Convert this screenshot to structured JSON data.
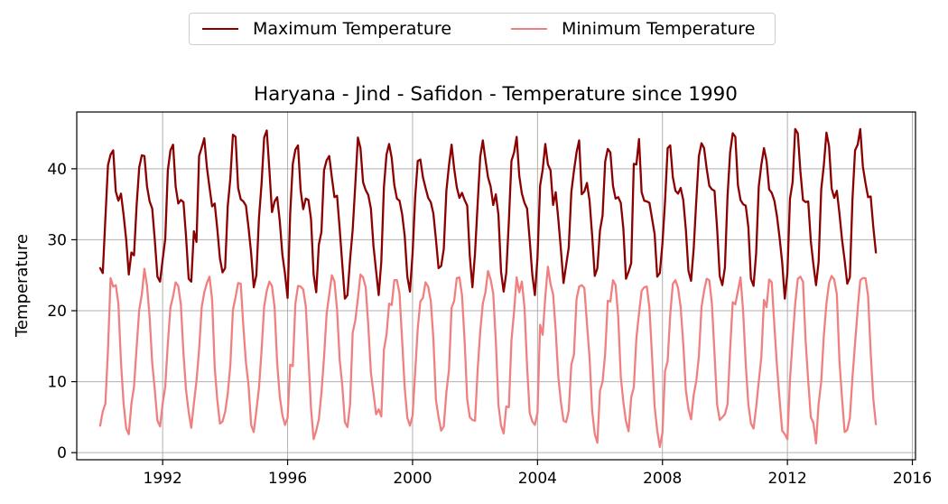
{
  "chart_data": {
    "type": "line",
    "title": "Haryana - Jind - Safidon - Temperature since 1990",
    "xlabel": "",
    "ylabel": "Temperature",
    "xlim": [
      1989.25,
      2016.1
    ],
    "ylim": [
      -1.0,
      48.0
    ],
    "xticks": [
      1992,
      1996,
      2000,
      2004,
      2008,
      2012,
      2016
    ],
    "yticks": [
      0,
      10,
      20,
      30,
      40
    ],
    "grid": true,
    "legend_position": "top-center",
    "x_start": 1990.0,
    "x_step": 0.08333,
    "series": [
      {
        "name": "Maximum Temperature",
        "color": "#8b0000",
        "values": [
          26.0,
          25.3,
          33.0,
          40.5,
          42.0,
          42.6,
          36.8,
          35.5,
          36.5,
          33.5,
          30.0,
          25.1,
          28.2,
          27.8,
          34.8,
          40.2,
          41.9,
          41.8,
          37.5,
          35.4,
          34.4,
          29.9,
          24.8,
          24.1,
          27.2,
          30.1,
          39.8,
          42.6,
          43.4,
          37.5,
          35.1,
          35.6,
          35.3,
          30.4,
          24.5,
          24.1,
          31.2,
          29.7,
          41.8,
          43.0,
          44.3,
          40.2,
          37.4,
          34.7,
          35.1,
          31.5,
          27.4,
          25.4,
          26.0,
          34.7,
          38.6,
          44.8,
          44.5,
          37.3,
          35.7,
          35.4,
          34.8,
          31.7,
          28.1,
          23.3,
          25.0,
          33.0,
          37.9,
          44.4,
          45.4,
          39.9,
          33.9,
          35.4,
          36.0,
          32.6,
          27.9,
          25.2,
          21.8,
          33.7,
          40.7,
          42.7,
          43.3,
          37.0,
          34.3,
          35.8,
          35.6,
          32.9,
          25.1,
          22.6,
          29.3,
          31.1,
          39.8,
          41.2,
          41.8,
          38.8,
          36.0,
          36.2,
          31.6,
          26.6,
          21.7,
          22.2,
          27.2,
          31.4,
          37.7,
          44.4,
          42.9,
          38.1,
          37.0,
          36.3,
          34.4,
          29.1,
          25.6,
          22.2,
          26.9,
          37.4,
          42.0,
          43.5,
          41.5,
          37.7,
          35.8,
          35.5,
          33.6,
          30.5,
          24.8,
          22.7,
          28.0,
          35.9,
          41.1,
          41.3,
          38.8,
          37.3,
          35.9,
          35.3,
          33.7,
          30.0,
          26.0,
          26.3,
          28.7,
          36.9,
          40.5,
          43.4,
          40.0,
          37.4,
          35.9,
          36.6,
          35.6,
          34.8,
          27.7,
          23.3,
          28.1,
          35.0,
          41.7,
          44.0,
          41.3,
          38.8,
          37.5,
          34.9,
          36.4,
          33.5,
          25.5,
          22.7,
          25.3,
          32.6,
          41.1,
          42.3,
          44.5,
          39.0,
          36.5,
          35.2,
          34.4,
          30.0,
          25.1,
          22.2,
          27.5,
          37.6,
          39.9,
          43.5,
          40.6,
          39.8,
          34.9,
          36.7,
          32.9,
          28.6,
          23.9,
          26.4,
          28.9,
          36.7,
          39.7,
          42.3,
          44.0,
          36.4,
          36.8,
          38.0,
          35.5,
          30.6,
          24.9,
          26.0,
          31.3,
          33.4,
          41.0,
          42.8,
          42.3,
          37.6,
          35.8,
          36.0,
          35.2,
          31.5,
          24.5,
          25.5,
          26.7,
          40.7,
          40.6,
          44.2,
          36.7,
          35.5,
          35.4,
          35.2,
          33.0,
          30.8,
          24.8,
          25.3,
          29.5,
          35.4,
          42.9,
          43.3,
          38.8,
          36.9,
          36.5,
          37.3,
          35.6,
          31.4,
          25.6,
          24.2,
          28.7,
          35.5,
          41.8,
          43.6,
          42.9,
          40.0,
          37.6,
          37.1,
          36.9,
          31.6,
          24.9,
          23.6,
          26.1,
          36.1,
          42.3,
          45.0,
          44.5,
          37.7,
          35.6,
          35.0,
          34.8,
          31.8,
          24.5,
          23.5,
          28.1,
          37.5,
          40.6,
          42.9,
          41.1,
          37.1,
          36.6,
          35.5,
          33.3,
          30.3,
          26.8,
          21.7,
          25.3,
          35.8,
          38.1,
          45.6,
          45.0,
          39.6,
          35.6,
          35.3,
          35.4,
          29.8,
          26.5,
          23.6,
          26.9,
          37.1,
          40.5,
          45.1,
          43.2,
          37.2,
          35.9,
          36.9,
          33.7,
          30.0,
          27.1,
          23.8,
          24.7,
          35.7,
          42.6,
          43.4,
          45.6,
          40.3,
          38.0,
          36.0,
          36.1,
          31.8,
          28.2
        ]
      },
      {
        "name": "Minimum Temperature",
        "color": "#f08080",
        "values": [
          3.8,
          5.8,
          6.9,
          14.5,
          24.6,
          23.4,
          23.6,
          21.0,
          12.7,
          6.9,
          3.4,
          2.6,
          6.9,
          9.3,
          14.8,
          20.1,
          22.3,
          25.9,
          23.5,
          19.1,
          12.6,
          8.8,
          4.5,
          3.7,
          6.9,
          9.3,
          15.4,
          20.5,
          22.0,
          24.0,
          23.5,
          20.9,
          14.0,
          8.8,
          5.7,
          3.5,
          6.9,
          10.1,
          14.5,
          20.5,
          22.6,
          23.9,
          24.8,
          21.6,
          12.0,
          7.4,
          4.1,
          4.4,
          5.7,
          8.3,
          12.3,
          20.1,
          21.9,
          23.9,
          23.8,
          17.8,
          12.7,
          9.5,
          3.9,
          2.9,
          5.9,
          9.1,
          14.4,
          20.6,
          22.8,
          24.1,
          23.5,
          20.5,
          12.6,
          7.9,
          5.3,
          3.9,
          4.9,
          12.4,
          12.2,
          21.0,
          23.5,
          23.4,
          23.0,
          20.6,
          13.5,
          6.2,
          1.9,
          3.1,
          4.7,
          8.4,
          13.4,
          19.6,
          22.3,
          25.0,
          24.1,
          20.2,
          13.1,
          9.5,
          4.3,
          3.6,
          6.8,
          16.9,
          18.6,
          21.7,
          25.1,
          24.7,
          23.3,
          17.9,
          11.3,
          8.4,
          5.4,
          6.1,
          5.1,
          14.5,
          16.6,
          21.0,
          20.8,
          24.3,
          24.3,
          22.4,
          15.8,
          9.1,
          4.9,
          3.8,
          5.2,
          11.3,
          17.5,
          21.3,
          21.8,
          24.0,
          23.4,
          21.4,
          16.1,
          7.4,
          5.0,
          3.1,
          3.7,
          8.5,
          11.7,
          20.4,
          21.4,
          24.6,
          24.7,
          22.2,
          15.8,
          7.5,
          5.0,
          4.6,
          4.5,
          11.6,
          17.1,
          21.0,
          22.6,
          25.6,
          24.4,
          22.4,
          15.7,
          6.7,
          3.8,
          2.7,
          6.5,
          6.4,
          15.8,
          19.9,
          24.7,
          22.6,
          24.1,
          20.5,
          12.2,
          5.6,
          4.4,
          3.9,
          5.6,
          18.0,
          16.6,
          22.0,
          26.2,
          23.8,
          22.3,
          17.2,
          10.7,
          7.1,
          4.5,
          4.3,
          5.9,
          12.4,
          13.8,
          21.6,
          23.4,
          23.6,
          23.2,
          18.2,
          13.4,
          5.9,
          2.6,
          1.4,
          8.7,
          10.0,
          14.0,
          21.4,
          21.3,
          24.3,
          23.6,
          19.2,
          10.7,
          7.1,
          4.4,
          3.0,
          7.8,
          9.2,
          16.2,
          19.6,
          22.8,
          23.3,
          23.4,
          20.4,
          13.6,
          6.5,
          3.1,
          0.8,
          2.8,
          11.5,
          12.9,
          19.5,
          23.8,
          24.3,
          23.2,
          20.5,
          15.3,
          8.8,
          6.1,
          4.7,
          8.1,
          10.1,
          13.6,
          20.5,
          22.8,
          24.5,
          24.3,
          21.0,
          14.0,
          6.8,
          4.6,
          5.0,
          5.4,
          6.8,
          14.5,
          21.2,
          20.9,
          22.8,
          24.7,
          19.9,
          12.5,
          6.8,
          4.1,
          3.4,
          6.4,
          10.0,
          13.5,
          21.5,
          20.5,
          24.4,
          24.0,
          17.9,
          12.2,
          7.5,
          3.1,
          2.6,
          1.9,
          10.3,
          15.8,
          21.0,
          24.5,
          24.8,
          24.1,
          15.8,
          10.1,
          5.0,
          4.2,
          1.3,
          6.9,
          10.0,
          16.5,
          21.0,
          23.9,
          24.9,
          24.4,
          22.3,
          12.9,
          7.6,
          2.9,
          3.2,
          4.9,
          10.6,
          15.4,
          20.2,
          24.3,
          24.6,
          24.6,
          22.1,
          14.1,
          7.6,
          4.0
        ]
      }
    ]
  }
}
